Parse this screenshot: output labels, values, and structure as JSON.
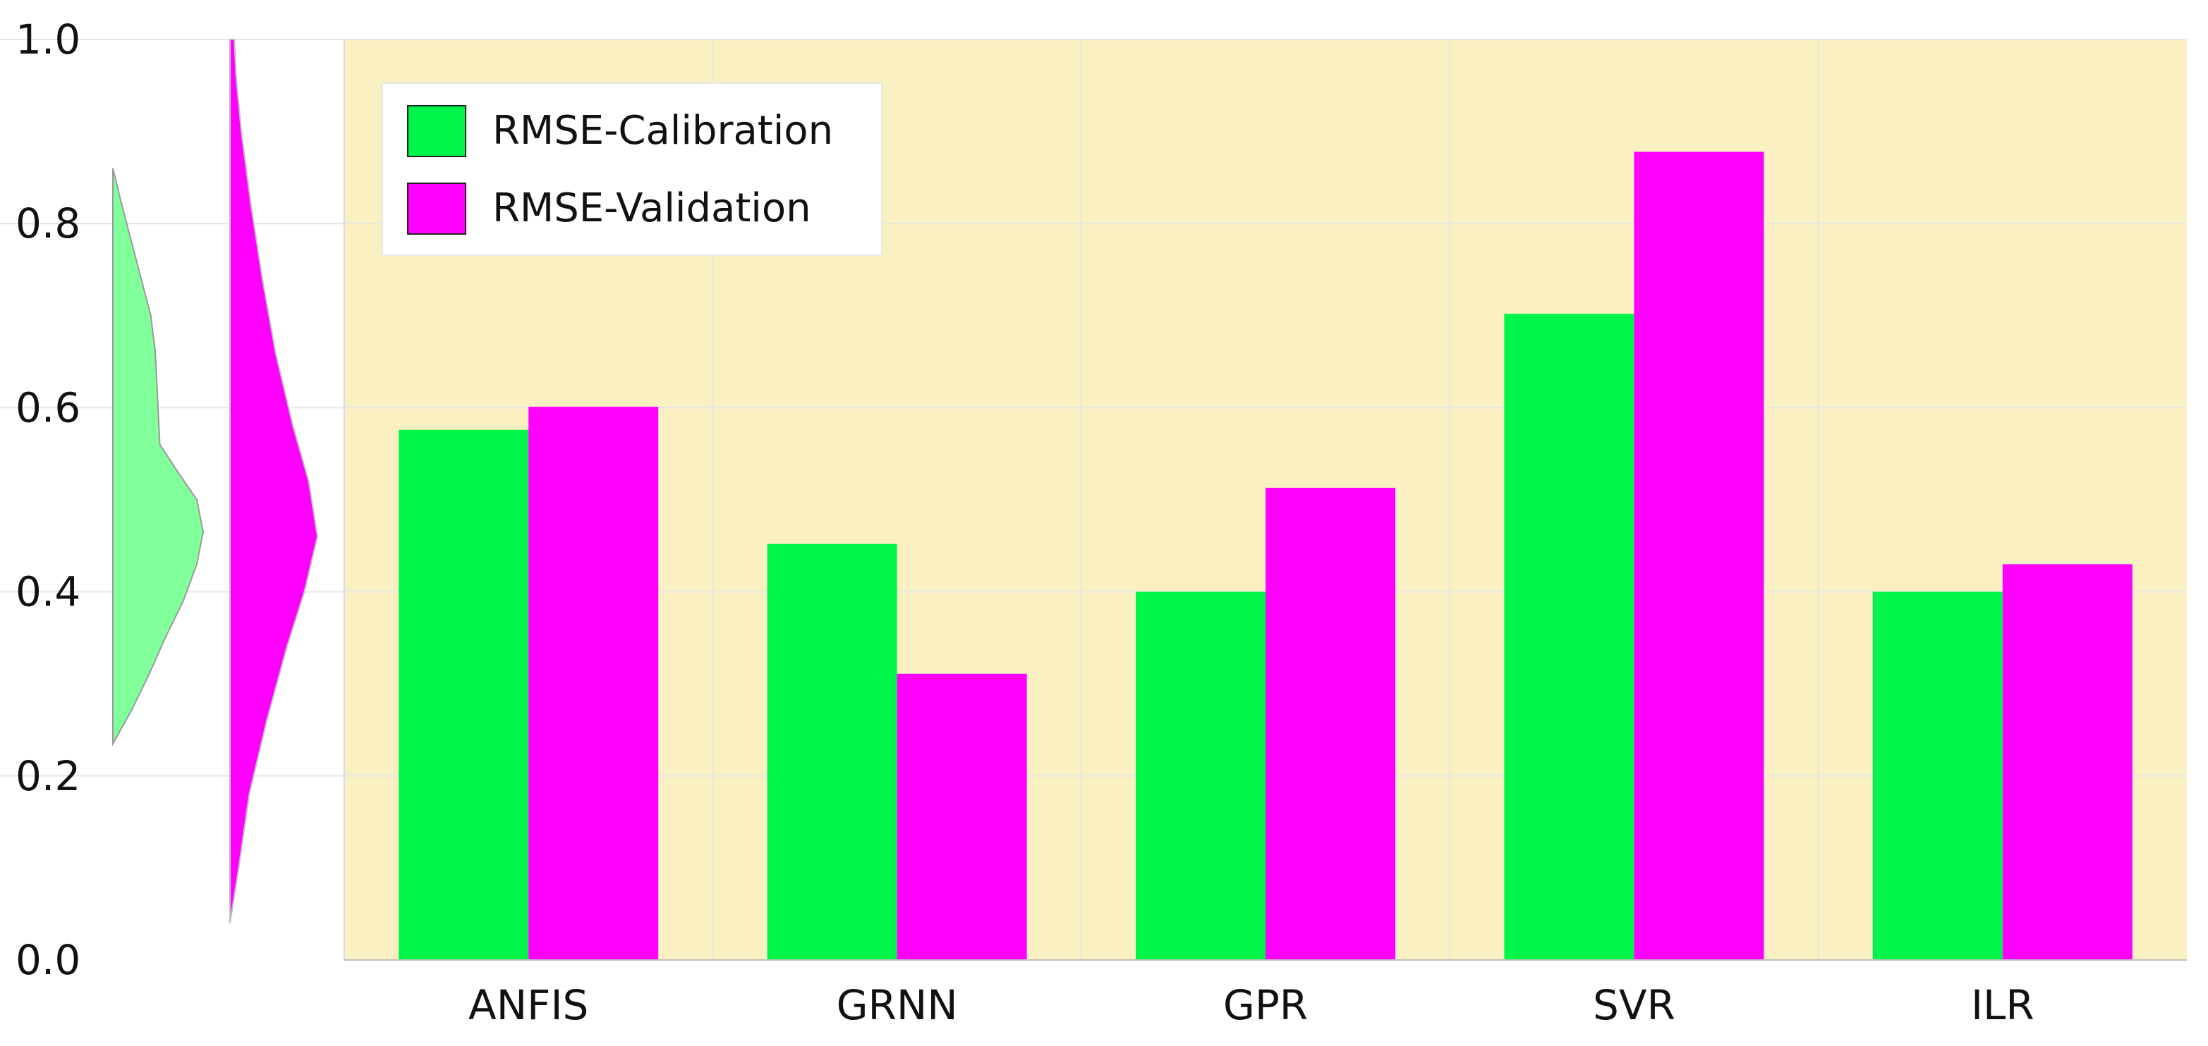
{
  "chart_data": {
    "type": "bar",
    "title": "",
    "xlabel": "",
    "ylabel": "",
    "ylim": [
      0,
      1.0
    ],
    "y_ticks": [
      "0.0",
      "0.2",
      "0.4",
      "0.6",
      "0.8",
      "1.0"
    ],
    "grid": true,
    "legend_position": "top-left",
    "plot_background": "#FBF0C2",
    "categories": [
      "ANFIS",
      "GRNN",
      "GPR",
      "SVR",
      "ILR"
    ],
    "series": [
      {
        "name": "RMSE-Calibration",
        "color": "#00F54A",
        "values": [
          0.576,
          0.452,
          0.4,
          0.702,
          0.4
        ]
      },
      {
        "name": "RMSE-Validation",
        "color": "#FF00FF",
        "values": [
          0.601,
          0.311,
          0.513,
          0.878,
          0.43
        ]
      }
    ],
    "distributions": [
      {
        "series": "RMSE-Calibration",
        "color": "#80FF9A",
        "range": [
          0.235,
          0.86
        ],
        "profile": [
          [
            0.235,
            0.0
          ],
          [
            0.27,
            0.2
          ],
          [
            0.31,
            0.4
          ],
          [
            0.35,
            0.58
          ],
          [
            0.39,
            0.78
          ],
          [
            0.43,
            0.93
          ],
          [
            0.465,
            1.0
          ],
          [
            0.5,
            0.93
          ],
          [
            0.53,
            0.72
          ],
          [
            0.56,
            0.52
          ],
          [
            0.6,
            0.5
          ],
          [
            0.66,
            0.47
          ],
          [
            0.7,
            0.42
          ],
          [
            0.76,
            0.26
          ],
          [
            0.82,
            0.1
          ],
          [
            0.86,
            0.0
          ]
        ]
      },
      {
        "series": "RMSE-Validation",
        "color": "#FF00FF",
        "range": [
          0.04,
          1.0
        ],
        "profile": [
          [
            0.04,
            0.0
          ],
          [
            0.1,
            0.1
          ],
          [
            0.18,
            0.22
          ],
          [
            0.26,
            0.42
          ],
          [
            0.34,
            0.65
          ],
          [
            0.4,
            0.85
          ],
          [
            0.46,
            1.0
          ],
          [
            0.52,
            0.9
          ],
          [
            0.58,
            0.72
          ],
          [
            0.66,
            0.52
          ],
          [
            0.74,
            0.37
          ],
          [
            0.82,
            0.24
          ],
          [
            0.9,
            0.13
          ],
          [
            0.96,
            0.07
          ],
          [
            1.0,
            0.05
          ]
        ]
      }
    ]
  }
}
